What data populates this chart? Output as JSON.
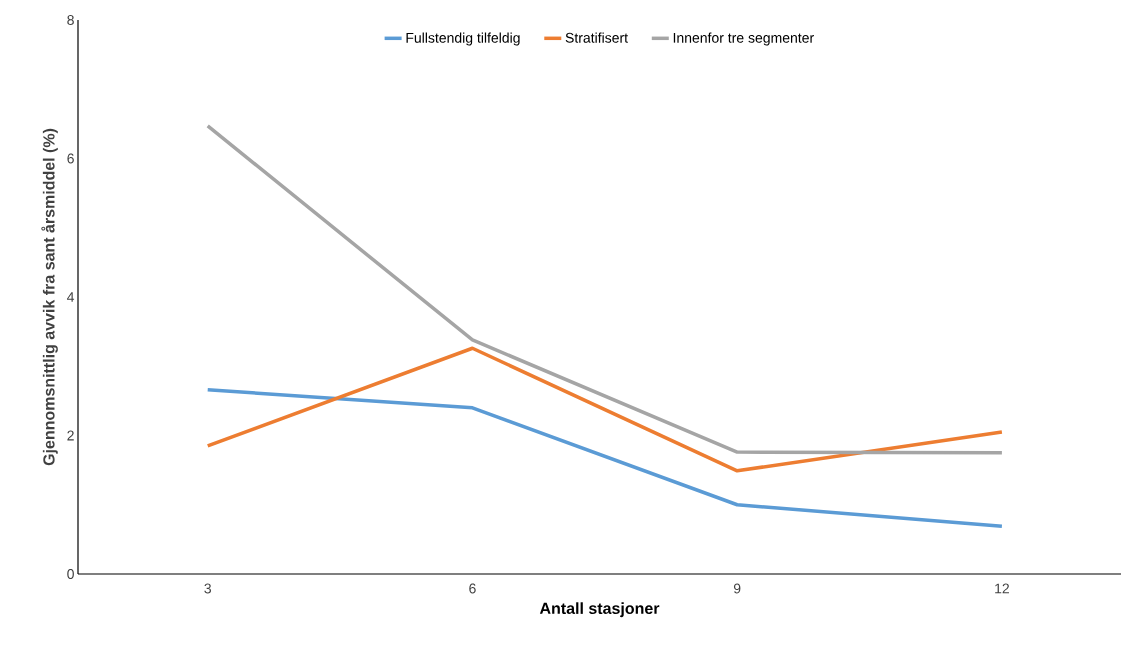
{
  "chart_data": {
    "type": "line",
    "xlabel": "Antall stasjoner",
    "ylabel": "Gjennomsnittlig avvik fra sant årsmiddel (%)",
    "categories": [
      "3",
      "6",
      "9",
      "12"
    ],
    "series": [
      {
        "name": "Fullstendig tilfeldig",
        "color": "#5b9bd5",
        "values": [
          2.66,
          2.4,
          1.0,
          0.69
        ]
      },
      {
        "name": "Stratifisert",
        "color": "#ed7d31",
        "values": [
          1.85,
          3.26,
          1.49,
          2.05
        ]
      },
      {
        "name": "Innenfor tre segmenter",
        "color": "#a5a5a5",
        "values": [
          6.47,
          3.38,
          1.76,
          1.75
        ]
      }
    ],
    "ylim": [
      0,
      8
    ],
    "yticks": [
      0,
      2,
      4,
      6,
      8
    ],
    "grid": false,
    "legend": "top",
    "marker": "none",
    "line_style": "solid"
  }
}
